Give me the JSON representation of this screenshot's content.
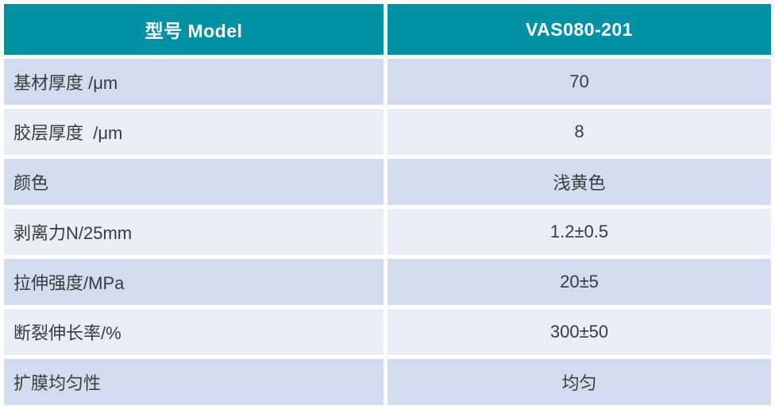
{
  "table": {
    "header": {
      "model_label": "型号 Model",
      "model_value": "VAS080-201"
    },
    "rows": [
      {
        "label": "基材厚度 /μm",
        "value": "70"
      },
      {
        "label": "胶层厚度  /μm",
        "value": "8"
      },
      {
        "label": "颜色",
        "value": "浅黄色"
      },
      {
        "label": "剥离力N/25mm",
        "value": "1.2±0.5"
      },
      {
        "label": "拉伸强度/MPa",
        "value": "20±5"
      },
      {
        "label": "断裂伸长率/%",
        "value": "300±50"
      },
      {
        "label": "扩膜均匀性",
        "value": "均匀"
      }
    ],
    "colors": {
      "header_bg": "#0191a5",
      "header_text": "#ffffff",
      "row_dark": "#d2dcee",
      "row_light": "#e9edf6",
      "body_text": "#3b3b3b"
    }
  }
}
